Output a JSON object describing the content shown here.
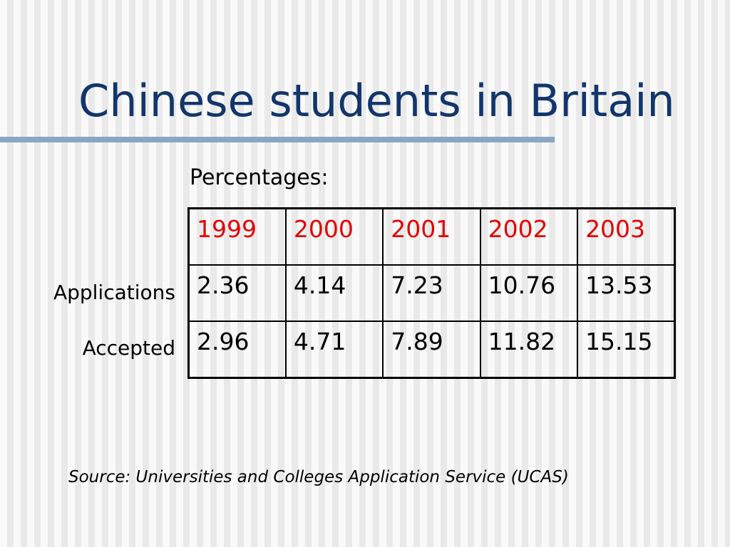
{
  "slide": {
    "title": "Chinese students in Britain",
    "subtitle": "Percentages:",
    "source": "Source: Universities and Colleges Application Service (UCAS)",
    "colors": {
      "title": "#12366b",
      "year_header": "#e50000",
      "title_rule": "#8ba6c3"
    }
  },
  "table": {
    "years": [
      "1999",
      "2000",
      "2001",
      "2002",
      "2003"
    ],
    "rows": [
      {
        "label": "Applications",
        "values": [
          "2.36",
          "4.14",
          "7.23",
          "10.76",
          "13.53"
        ]
      },
      {
        "label": "Accepted",
        "values": [
          "2.96",
          "4.71",
          "7.89",
          "11.82",
          "15.15"
        ]
      }
    ]
  }
}
